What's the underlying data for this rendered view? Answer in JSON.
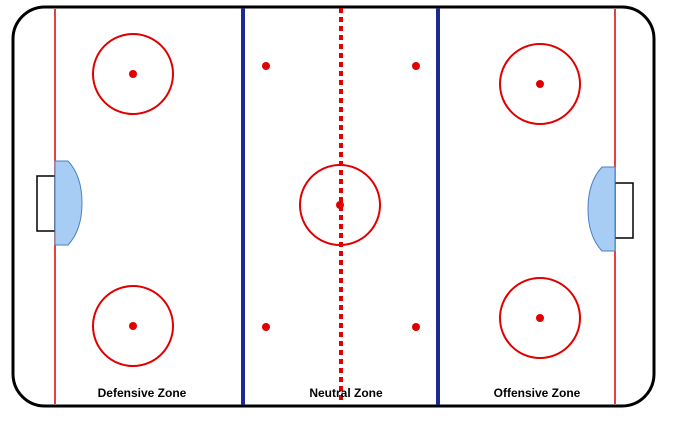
{
  "rink": {
    "colors": {
      "boards": "#000000",
      "goal_line": "#e00000",
      "blue_line": "#1f2a8f",
      "center_line": "#e00000",
      "circle": "#e00000",
      "dot": "#e00000",
      "crease": "#a8cdf5",
      "net": "#000000"
    },
    "zones": [
      {
        "label": "Defensive Zone"
      },
      {
        "label": "Neutral Zone"
      },
      {
        "label": "Offensive Zone"
      }
    ]
  }
}
